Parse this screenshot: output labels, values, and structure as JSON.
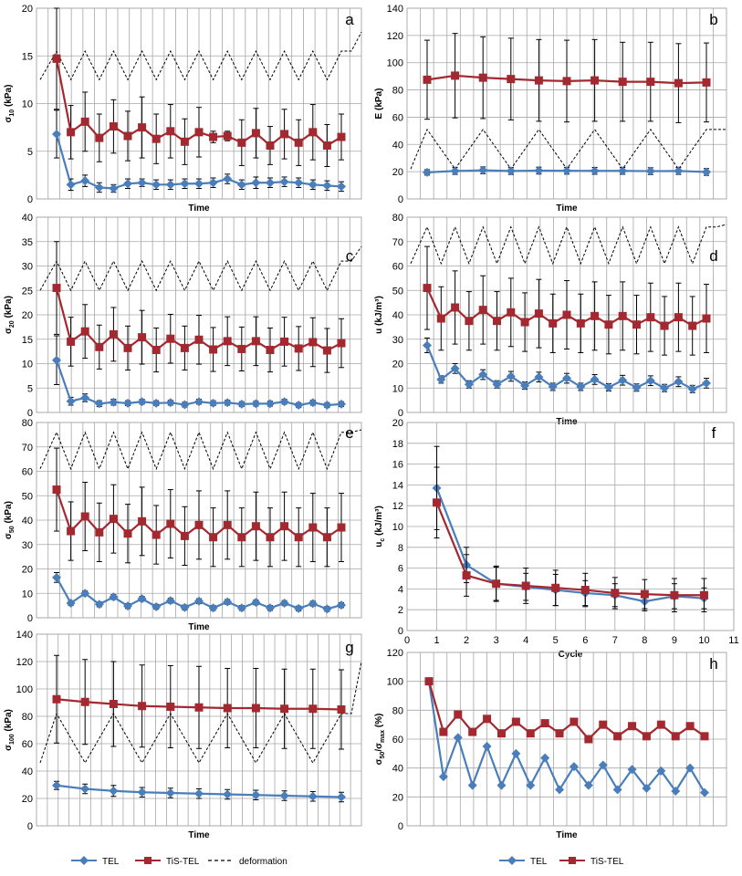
{
  "colors": {
    "tel": "#4a7ebb",
    "tis": "#a3282f",
    "deformation": "#000000",
    "grid": "#a6a6a6",
    "err": "#000000"
  },
  "legend": {
    "left": {
      "tel": "TEL",
      "tis": "TiS-TEL",
      "deformation": "deformation"
    },
    "right": {
      "tel": "TEL",
      "tis": "TiS-TEL"
    }
  },
  "chart_data": [
    {
      "id": "a",
      "panel_label": "a",
      "type": "line",
      "xlabel": "Time",
      "ylabel_main": "σ",
      "ylabel_sub": "10",
      "ylabel_unit": " (kPa)",
      "ylim": [
        0,
        20
      ],
      "yticks": [
        0,
        5,
        10,
        15,
        20
      ],
      "n_vlines": 28,
      "grid": true,
      "series": [
        {
          "name": "TEL",
          "values": [
            6.8,
            1.5,
            1.9,
            1.2,
            1.1,
            1.6,
            1.7,
            1.5,
            1.5,
            1.6,
            1.6,
            1.7,
            2.1,
            1.5,
            1.7,
            1.7,
            1.8,
            1.7,
            1.5,
            1.4,
            1.3
          ],
          "err": [
            2.5,
            0.6,
            0.6,
            0.5,
            0.4,
            0.5,
            0.4,
            0.5,
            0.5,
            0.5,
            0.5,
            0.5,
            0.5,
            0.5,
            0.6,
            0.5,
            0.5,
            0.5,
            0.5,
            0.5,
            0.5
          ]
        },
        {
          "name": "TiS-TEL",
          "values": [
            14.7,
            7.0,
            8.1,
            6.4,
            7.6,
            6.6,
            7.5,
            6.3,
            7.1,
            6.0,
            7.0,
            6.5,
            6.6,
            5.9,
            6.9,
            5.6,
            6.8,
            5.9,
            7.0,
            5.6,
            6.5
          ],
          "err": [
            5.3,
            2.8,
            3.1,
            2.5,
            2.8,
            2.6,
            3.2,
            2.6,
            2.8,
            2.4,
            2.6,
            0.6,
            0.5,
            2.4,
            2.6,
            2.0,
            2.6,
            2.4,
            2.9,
            2.2,
            2.4
          ]
        }
      ],
      "deformation": {
        "lo": 12.5,
        "hi": 15.5,
        "end": 17.5
      }
    },
    {
      "id": "b",
      "panel_label": "b",
      "type": "line",
      "xlabel": "Time",
      "ylabel_main": "E",
      "ylabel_sub": "",
      "ylabel_unit": " (kPa)",
      "ylim": [
        0,
        140
      ],
      "yticks": [
        0,
        20,
        40,
        60,
        80,
        100,
        120,
        140
      ],
      "n_vlines": 24,
      "grid": true,
      "series": [
        {
          "name": "TEL",
          "values": [
            19.5,
            20.5,
            21.0,
            20.5,
            20.8,
            20.7,
            20.6,
            20.6,
            20.4,
            20.5,
            19.8
          ],
          "err": [
            2,
            2.5,
            2.5,
            2.5,
            2.5,
            2.5,
            2.5,
            2.5,
            2.5,
            2.5,
            2.5
          ]
        },
        {
          "name": "TiS-TEL",
          "values": [
            87.5,
            90.5,
            89.0,
            88.0,
            87.0,
            86.5,
            87.0,
            86.0,
            86.0,
            85.0,
            85.5
          ],
          "err": [
            29,
            31,
            30,
            30,
            30,
            30,
            30,
            29,
            29,
            29,
            29
          ]
        }
      ],
      "deformation": {
        "lo": 22,
        "hi": 51,
        "end": 51
      }
    },
    {
      "id": "c",
      "panel_label": "c",
      "type": "line",
      "xlabel": "",
      "ylabel_main": "σ",
      "ylabel_sub": "20",
      "ylabel_unit": " (kPa)",
      "ylim": [
        0,
        40
      ],
      "yticks": [
        0,
        5,
        10,
        15,
        20,
        25,
        30,
        35,
        40
      ],
      "n_vlines": 28,
      "grid": true,
      "series": [
        {
          "name": "TEL",
          "values": [
            10.7,
            2.3,
            3.0,
            1.8,
            2.1,
            1.9,
            2.2,
            1.9,
            2.0,
            1.6,
            2.2,
            1.9,
            2.0,
            1.7,
            1.8,
            1.8,
            2.2,
            1.5,
            2.0,
            1.5,
            1.7
          ],
          "err": [
            5,
            0.8,
            0.8,
            0.6,
            0.6,
            0.5,
            0.5,
            0.5,
            0.5,
            0.5,
            0.5,
            0.5,
            0.5,
            0.5,
            0.5,
            0.5,
            0.5,
            0.5,
            0.5,
            0.5,
            0.5
          ]
        },
        {
          "name": "TiS-TEL",
          "values": [
            25.5,
            14.5,
            16.6,
            13.4,
            16.0,
            13.2,
            15.4,
            12.8,
            15.1,
            13.2,
            14.9,
            12.9,
            14.6,
            13.0,
            14.6,
            12.8,
            14.5,
            13.1,
            14.4,
            12.7,
            14.2
          ],
          "err": [
            9.5,
            5,
            5.5,
            4.5,
            5.5,
            4.5,
            5.5,
            4.5,
            5,
            4.5,
            5,
            4.5,
            5,
            4.5,
            5,
            4.5,
            5,
            4.5,
            5,
            4.5,
            5
          ]
        }
      ],
      "deformation": {
        "lo": 25,
        "hi": 31,
        "end": 34
      }
    },
    {
      "id": "d",
      "panel_label": "d",
      "type": "line",
      "xlabel": "Time",
      "ylabel_main": "u",
      "ylabel_sub": "",
      "ylabel_unit": " (kJ/m³)",
      "ylim": [
        0,
        80
      ],
      "yticks": [
        0,
        10,
        20,
        30,
        40,
        50,
        60,
        70,
        80
      ],
      "n_vlines": 24,
      "grid": true,
      "series": [
        {
          "name": "TEL",
          "values": [
            27.5,
            13.5,
            18.0,
            11.5,
            15.5,
            11.5,
            14.8,
            11.0,
            14.5,
            10.5,
            14.0,
            10.5,
            13.5,
            10.3,
            13.2,
            10.2,
            13.0,
            10.0,
            12.6,
            9.6,
            12.0
          ],
          "err": [
            3,
            1.5,
            2,
            1.5,
            2,
            1.5,
            2,
            1.5,
            2,
            1.5,
            2,
            1.5,
            2,
            1.5,
            2,
            1.5,
            2,
            1.5,
            2,
            1.5,
            2
          ]
        },
        {
          "name": "TiS-TEL",
          "values": [
            51.0,
            38.5,
            43.0,
            37.5,
            42.0,
            37.5,
            41.0,
            37.0,
            40.5,
            36.5,
            40.0,
            36.5,
            39.5,
            36.0,
            39.5,
            36.0,
            39.0,
            35.5,
            39.0,
            35.5,
            38.5
          ],
          "err": [
            17,
            13,
            15,
            12,
            14,
            12,
            14,
            12,
            14,
            12,
            14,
            12,
            14,
            12,
            14,
            12,
            14,
            12,
            14,
            12,
            14
          ]
        }
      ],
      "deformation": {
        "lo": 61,
        "hi": 76,
        "end": 77
      }
    },
    {
      "id": "e",
      "panel_label": "e",
      "type": "line",
      "xlabel": "Time",
      "ylabel_main": "σ",
      "ylabel_sub": "50",
      "ylabel_unit": " (kPa)",
      "ylim": [
        0,
        80
      ],
      "yticks": [
        0,
        10,
        20,
        30,
        40,
        50,
        60,
        70,
        80
      ],
      "n_vlines": 28,
      "grid": true,
      "series": [
        {
          "name": "TEL",
          "values": [
            16.5,
            6.0,
            10.0,
            5.5,
            8.5,
            4.8,
            7.8,
            4.5,
            7.0,
            4.2,
            6.8,
            4.0,
            6.5,
            4.0,
            6.3,
            4.0,
            6.0,
            3.8,
            5.8,
            3.6,
            5.2
          ],
          "err": [
            2,
            1,
            1,
            1,
            1,
            1,
            1,
            1,
            1,
            1,
            1,
            1,
            1,
            1,
            1,
            1,
            1,
            1,
            1,
            1,
            1
          ]
        },
        {
          "name": "TiS-TEL",
          "values": [
            52.5,
            35.5,
            41.5,
            35.0,
            40.5,
            34.5,
            39.5,
            34.0,
            38.5,
            33.5,
            38.0,
            33.0,
            38.0,
            33.0,
            37.5,
            33.0,
            37.5,
            33.0,
            37.0,
            33.0,
            37.0
          ],
          "err": [
            17,
            12,
            14,
            12,
            14,
            12,
            14,
            12,
            14,
            12,
            14,
            12,
            14,
            12,
            14,
            12,
            14,
            12,
            14,
            12,
            14
          ]
        }
      ],
      "deformation": {
        "lo": 61,
        "hi": 76,
        "end": 77
      }
    },
    {
      "id": "f",
      "panel_label": "f",
      "type": "line",
      "xlabel": "Cycle",
      "ylabel_main": "u",
      "ylabel_sub": "c",
      "ylabel_unit": " (kJ/m³)",
      "ylim": [
        0,
        20
      ],
      "yticks": [
        0,
        2,
        4,
        6,
        8,
        10,
        12,
        14,
        16,
        18,
        20
      ],
      "xlim": [
        0,
        11
      ],
      "xticks": [
        0,
        1,
        2,
        3,
        4,
        5,
        6,
        7,
        8,
        9,
        10,
        11
      ],
      "grid": true,
      "series": [
        {
          "name": "TEL",
          "x": [
            1,
            2,
            3,
            4,
            5,
            6,
            7,
            8,
            9,
            10
          ],
          "values": [
            13.7,
            6.3,
            4.5,
            4.2,
            3.9,
            3.6,
            3.4,
            2.8,
            3.3,
            3.1
          ],
          "err": [
            4.0,
            1.7,
            1.6,
            1.3,
            1.5,
            1.2,
            1.1,
            0.9,
            1.2,
            1.0
          ]
        },
        {
          "name": "TiS-TEL",
          "x": [
            1,
            2,
            3,
            4,
            5,
            6,
            7,
            8,
            9,
            10
          ],
          "values": [
            12.3,
            5.3,
            4.5,
            4.3,
            4.1,
            3.9,
            3.6,
            3.5,
            3.4,
            3.4
          ],
          "err": [
            3.4,
            2.0,
            1.7,
            1.7,
            1.7,
            1.6,
            1.5,
            1.4,
            1.6,
            1.6
          ]
        }
      ]
    },
    {
      "id": "g",
      "panel_label": "g",
      "type": "line",
      "xlabel": "Time",
      "ylabel_main": "σ",
      "ylabel_sub": "100",
      "ylabel_unit": " (kPa)",
      "ylim": [
        0,
        140
      ],
      "yticks": [
        0,
        20,
        40,
        60,
        80,
        100,
        120,
        140
      ],
      "n_vlines": 30,
      "grid": true,
      "series": [
        {
          "name": "TEL",
          "values": [
            29.5,
            27.0,
            25.5,
            24.5,
            24.0,
            23.5,
            23.0,
            22.5,
            22.0,
            21.5,
            21.0
          ],
          "err": [
            3,
            3.5,
            4,
            3.5,
            3.5,
            3.5,
            3.5,
            3.5,
            3.5,
            3.5,
            3.5
          ]
        },
        {
          "name": "TiS-TEL",
          "values": [
            92.5,
            90.5,
            89.0,
            87.5,
            87.0,
            86.5,
            86.0,
            86.0,
            85.5,
            85.5,
            85.0
          ],
          "err": [
            32,
            31,
            31,
            30,
            30,
            30,
            29,
            29,
            29,
            29,
            29
          ]
        }
      ],
      "deformation": {
        "lo": 46,
        "hi": 82,
        "end": 120
      }
    },
    {
      "id": "h",
      "panel_label": "h",
      "type": "line",
      "xlabel": "Time",
      "ylabel_main": "σ",
      "ylabel_sub": "50",
      "ylabel_unit": "/σ",
      "ylabel_sub2": "max",
      "ylabel_unit2": " (%)",
      "ylim": [
        0,
        120
      ],
      "yticks": [
        0,
        20,
        40,
        60,
        80,
        100,
        120
      ],
      "n_vlines": 24,
      "grid": true,
      "series": [
        {
          "name": "TEL",
          "values": [
            100,
            34,
            61,
            28,
            55,
            28,
            50,
            28,
            47,
            25,
            41,
            28,
            42,
            25,
            39,
            26,
            38,
            24,
            40,
            23
          ]
        },
        {
          "name": "TiS-TEL",
          "values": [
            100,
            65,
            77,
            65,
            74,
            64,
            72,
            64,
            71,
            64,
            72,
            60,
            70,
            62,
            69,
            62,
            70,
            62,
            69,
            62
          ]
        }
      ]
    }
  ]
}
